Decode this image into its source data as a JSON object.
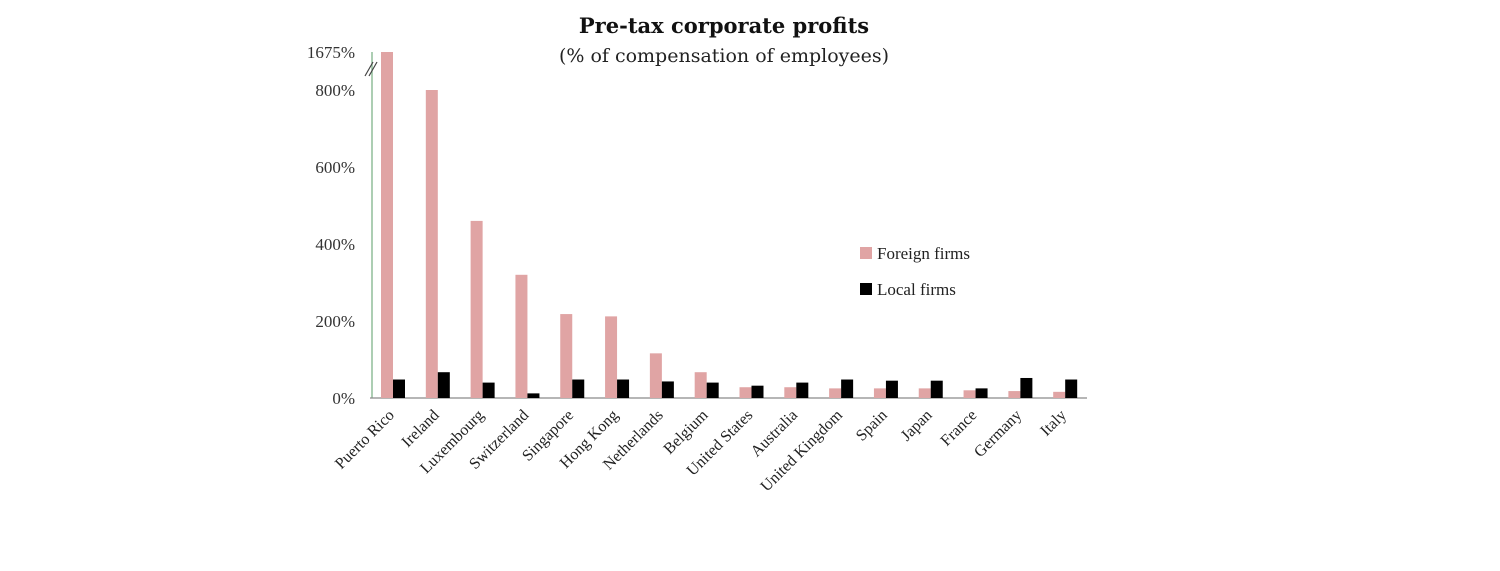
{
  "chart_data": {
    "type": "bar",
    "title": "Pre-tax corporate profits",
    "subtitle": "(% of compensation of employees)",
    "categories": [
      "Puerto Rico",
      "Ireland",
      "Luxembourg",
      "Switzerland",
      "Singapore",
      "Hong Kong",
      "Netherlands",
      "Belgium",
      "United States",
      "Australia",
      "United Kingdom",
      "Spain",
      "Japan",
      "France",
      "Germany",
      "Italy"
    ],
    "series": [
      {
        "name": "Foreign firms",
        "color": "#e0a4a4",
        "values": [
          1675,
          800,
          460,
          320,
          218,
          212,
          116,
          67,
          28,
          28,
          25,
          25,
          25,
          20,
          18,
          16
        ]
      },
      {
        "name": "Local firms",
        "color": "#000000",
        "values": [
          48,
          67,
          40,
          12,
          48,
          48,
          43,
          40,
          32,
          40,
          48,
          45,
          45,
          25,
          52,
          48
        ]
      }
    ],
    "ylim": [
      0,
      1675
    ],
    "yticks": [
      0,
      200,
      400,
      600,
      800,
      1675
    ],
    "ytick_labels": [
      "0%",
      "200%",
      "400%",
      "600%",
      "800%",
      "1675%"
    ],
    "axis_break": "between 800% and 1675% (on Puerto Rico bar)",
    "legend_position": "right",
    "grid": false
  }
}
